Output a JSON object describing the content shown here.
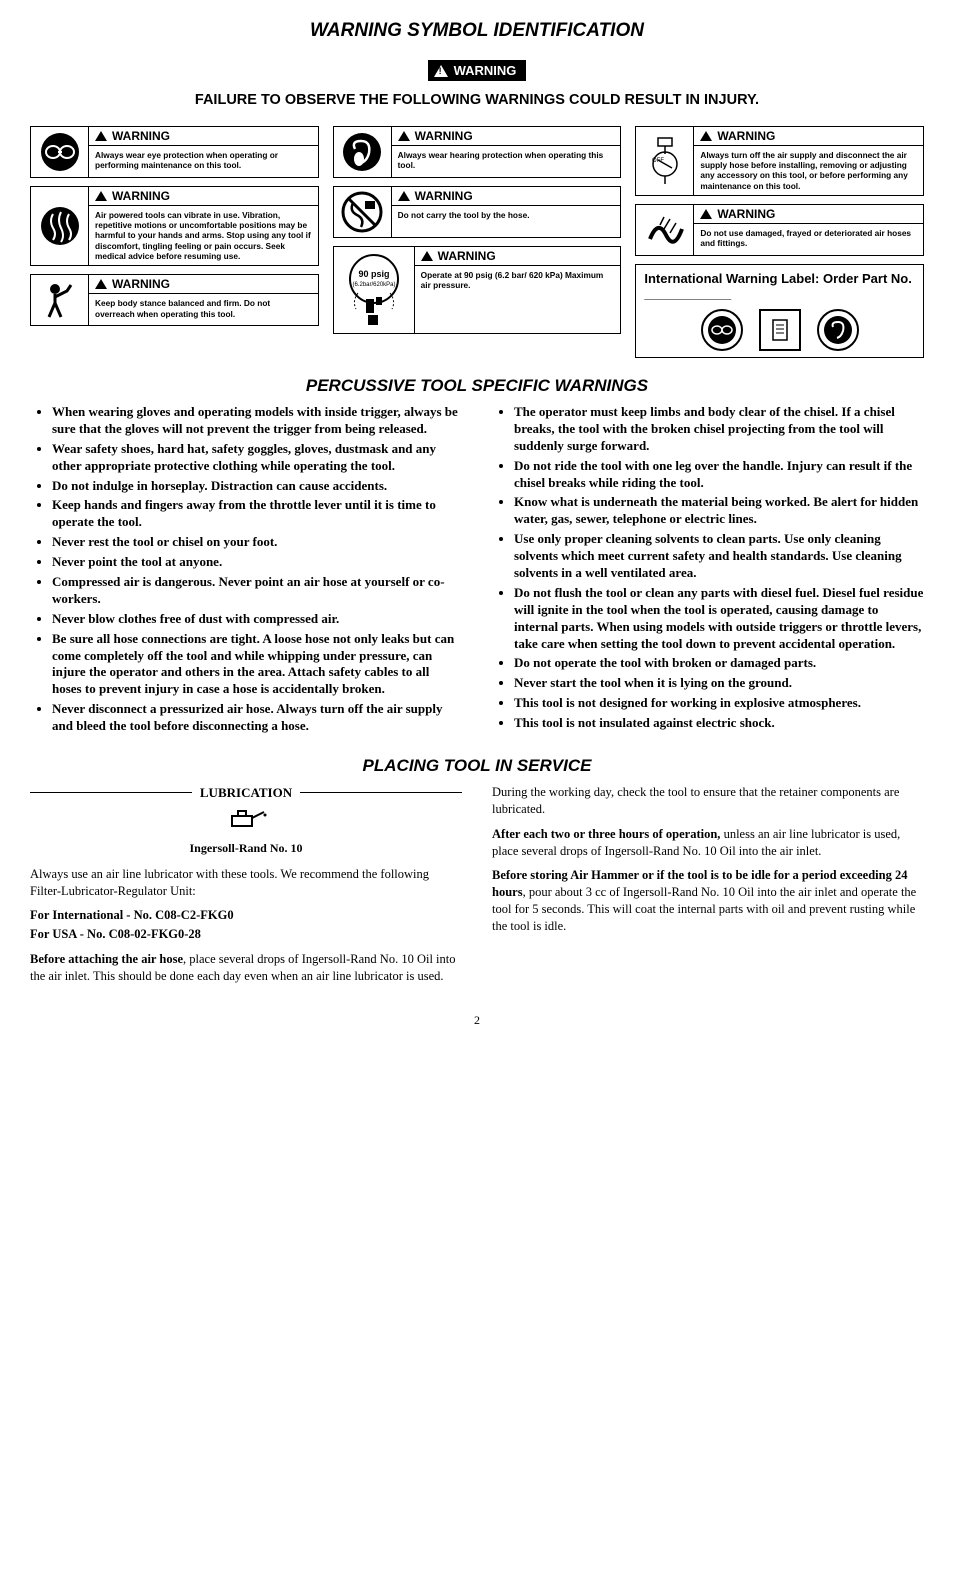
{
  "title1": "WARNING SYMBOL IDENTIFICATION",
  "badge_text": "WARNING",
  "top_note": "FAILURE TO OBSERVE THE FOLLOWING WARNINGS COULD RESULT IN INJURY.",
  "cards": {
    "c1": "Always wear eye protection when operating or performing maintenance on this tool.",
    "c2": "Air powered tools can vibrate in use. Vibration, repetitive motions or uncomfortable positions may be harmful to your hands and arms. Stop using any tool if discomfort, tingling feeling or pain occurs. Seek medical advice before resuming use.",
    "c3": "Keep body stance balanced and firm. Do not overreach when operating this tool.",
    "c4": "Always wear hearing protection when operating this tool.",
    "c5": "Do not carry the tool by the hose.",
    "c6_label": "90 psig",
    "c6_sub": "(6.2bar/620kPa)",
    "c6": "Operate at 90 psig (6.2 bar/ 620 kPa) Maximum air pressure.",
    "c7": "Always turn off the air supply and disconnect the air supply hose before installing, removing or adjusting any accessory on this tool, or before performing any maintenance on this tool.",
    "c8": "Do not use damaged, frayed or deteriorated air hoses and fittings."
  },
  "intl_label": "International Warning Label: Order Part No. ____________",
  "title2": "PERCUSSIVE TOOL SPECIFIC WARNINGS",
  "left_bullets": [
    "When wearing gloves and operating models with inside trigger, always be sure that the gloves will not prevent the trigger from being released.",
    "Wear safety shoes, hard hat, safety goggles, gloves, dustmask and any other appropriate protective clothing while operating the tool.",
    "Do not indulge in horseplay. Distraction can cause accidents.",
    "Keep hands and fingers away from the throttle lever until it is time to operate the tool.",
    "Never rest the tool or chisel on your foot.",
    "Never point the tool at anyone.",
    "Compressed air is dangerous. Never point an air hose at yourself or co-workers.",
    "Never blow clothes free of dust with compressed air.",
    "Be sure all hose connections are tight. A loose hose not only leaks but can come completely off the tool and while whipping under pressure, can injure the operator and others in the area. Attach safety cables to all hoses to prevent injury in case a hose is accidentally broken.",
    "Never disconnect a pressurized air hose. Always turn off the air supply and bleed the tool before disconnecting a hose."
  ],
  "right_bullets": [
    "The operator must keep limbs and body clear of the chisel. If a chisel breaks, the tool with the broken chisel projecting from the tool will suddenly surge forward.",
    "Do not ride the tool with one leg over the handle. Injury can result if the chisel breaks while riding the tool.",
    "Know what is underneath the material being worked. Be alert for hidden water, gas, sewer, telephone or electric lines.",
    "Use only proper cleaning solvents to clean parts. Use only cleaning solvents which meet current safety and health standards. Use cleaning solvents in a well ventilated area.",
    "Do not flush the tool or clean any parts with diesel fuel. Diesel fuel residue will ignite in the tool when the tool is operated, causing damage to internal parts. When using models with outside triggers or throttle levers, take care when setting the tool down to prevent accidental operation.",
    "Do not operate the tool with broken or damaged parts.",
    "Never start the tool when it is lying on the ground.",
    "This tool is not designed for working in explosive atmospheres.",
    "This tool is not insulated against electric shock."
  ],
  "title3": "PLACING TOOL IN SERVICE",
  "lubr_title": "LUBRICATION",
  "lubr_sub": "Ingersoll-Rand No. 10",
  "lubr_p1": "Always use an air line lubricator with these tools. We recommend the following Filter-Lubricator-Regulator Unit:",
  "lubr_p2": "For International - No. C08-C2-FKG0",
  "lubr_p3": "For USA - No. C08-02-FKG0-28",
  "lubr_p4a": "Before attaching the air hose",
  "lubr_p4b": ", place several drops of Ingersoll-Rand No. 10 Oil into the air inlet. This should be done each day even when an air line lubricator is used.",
  "right_p1": "During the working day, check the tool to ensure that the retainer components are lubricated.",
  "right_p2a": "After each two or three hours of operation,",
  "right_p2b": " unless an air line lubricator is used, place several drops of Ingersoll-Rand No. 10 Oil into the air inlet.",
  "right_p3a": "Before storing Air Hammer or if the tool is to be idle for a period exceeding 24 hours",
  "right_p3b": ", pour about 3 cc of Ingersoll-Rand No. 10 Oil into the air inlet and operate the tool for 5 seconds. This will coat the internal parts with oil and prevent rusting while the tool is idle.",
  "page_num": "2"
}
